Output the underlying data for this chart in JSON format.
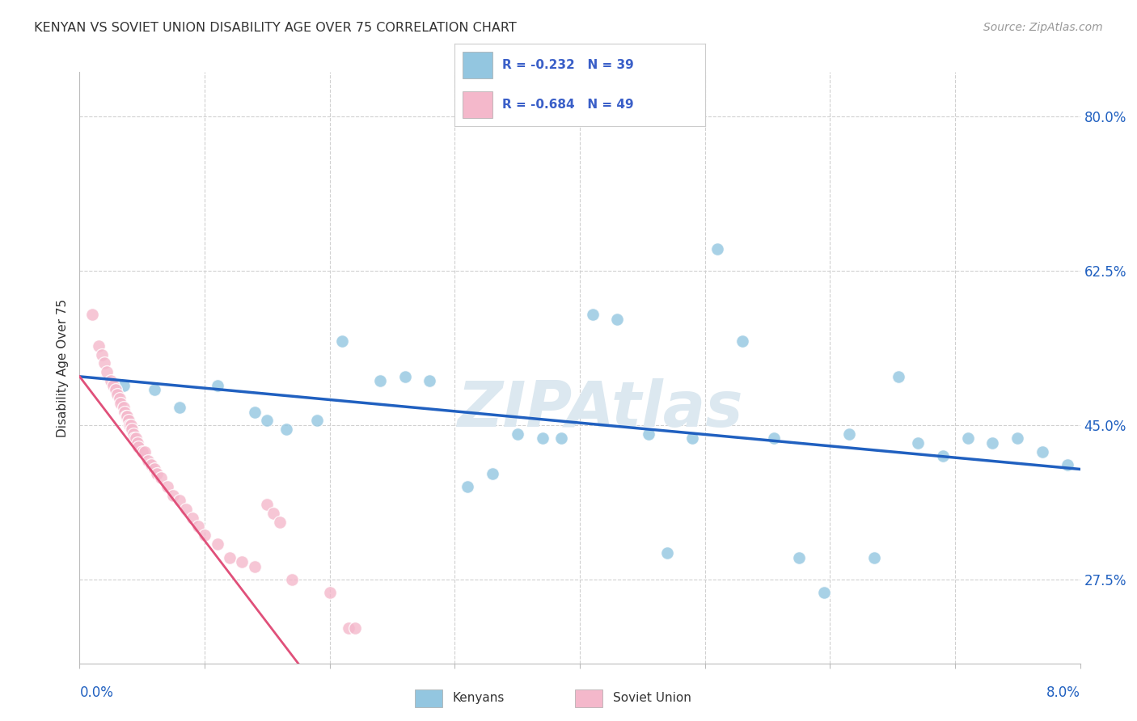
{
  "title": "KENYAN VS SOVIET UNION DISABILITY AGE OVER 75 CORRELATION CHART",
  "source": "Source: ZipAtlas.com",
  "ylabel": "Disability Age Over 75",
  "yticks": [
    27.5,
    45.0,
    62.5,
    80.0
  ],
  "ytick_labels": [
    "27.5%",
    "45.0%",
    "62.5%",
    "80.0%"
  ],
  "xtick_labels": [
    "0.0%",
    "",
    "",
    "",
    "",
    "",
    "",
    "",
    "8.0%"
  ],
  "xmin": 0.0,
  "xmax": 8.0,
  "ymin": 18.0,
  "ymax": 85.0,
  "kenyan_color": "#93c6e0",
  "soviet_color": "#f4b8cb",
  "kenyan_line_color": "#2060c0",
  "soviet_line_color": "#e0507a",
  "legend_text_color": "#3a5fc8",
  "title_color": "#333333",
  "source_color": "#999999",
  "watermark_color": "#dce8f0",
  "background_color": "#ffffff",
  "grid_color": "#d0d0d0",
  "axis_color": "#bbbbbb",
  "kenyan_scatter": [
    [
      0.35,
      49.5
    ],
    [
      0.6,
      49.0
    ],
    [
      0.8,
      47.0
    ],
    [
      1.1,
      49.5
    ],
    [
      1.4,
      46.5
    ],
    [
      1.5,
      45.5
    ],
    [
      1.65,
      44.5
    ],
    [
      1.9,
      45.5
    ],
    [
      2.1,
      54.5
    ],
    [
      2.4,
      50.0
    ],
    [
      2.6,
      50.5
    ],
    [
      2.8,
      50.0
    ],
    [
      3.1,
      38.0
    ],
    [
      3.3,
      39.5
    ],
    [
      3.5,
      44.0
    ],
    [
      3.7,
      43.5
    ],
    [
      3.85,
      43.5
    ],
    [
      4.1,
      57.5
    ],
    [
      4.3,
      57.0
    ],
    [
      4.55,
      44.0
    ],
    [
      4.7,
      30.5
    ],
    [
      4.9,
      43.5
    ],
    [
      5.1,
      65.0
    ],
    [
      5.3,
      54.5
    ],
    [
      5.55,
      43.5
    ],
    [
      5.75,
      30.0
    ],
    [
      5.95,
      26.0
    ],
    [
      6.15,
      44.0
    ],
    [
      6.35,
      30.0
    ],
    [
      6.55,
      50.5
    ],
    [
      6.7,
      43.0
    ],
    [
      6.9,
      41.5
    ],
    [
      7.1,
      43.5
    ],
    [
      7.3,
      43.0
    ],
    [
      7.5,
      43.5
    ],
    [
      7.7,
      42.0
    ],
    [
      7.9,
      40.5
    ]
  ],
  "soviet_scatter": [
    [
      0.1,
      57.5
    ],
    [
      0.15,
      54.0
    ],
    [
      0.18,
      53.0
    ],
    [
      0.2,
      52.0
    ],
    [
      0.22,
      51.0
    ],
    [
      0.25,
      50.0
    ],
    [
      0.27,
      49.5
    ],
    [
      0.29,
      49.0
    ],
    [
      0.3,
      48.5
    ],
    [
      0.32,
      48.0
    ],
    [
      0.33,
      47.5
    ],
    [
      0.35,
      47.0
    ],
    [
      0.36,
      46.5
    ],
    [
      0.37,
      46.0
    ],
    [
      0.38,
      46.0
    ],
    [
      0.39,
      45.5
    ],
    [
      0.4,
      45.0
    ],
    [
      0.41,
      45.0
    ],
    [
      0.42,
      44.5
    ],
    [
      0.43,
      44.0
    ],
    [
      0.44,
      43.5
    ],
    [
      0.45,
      43.5
    ],
    [
      0.46,
      43.0
    ],
    [
      0.47,
      42.5
    ],
    [
      0.5,
      42.0
    ],
    [
      0.52,
      42.0
    ],
    [
      0.55,
      41.0
    ],
    [
      0.57,
      40.5
    ],
    [
      0.6,
      40.0
    ],
    [
      0.62,
      39.5
    ],
    [
      0.65,
      39.0
    ],
    [
      0.7,
      38.0
    ],
    [
      0.75,
      37.0
    ],
    [
      0.8,
      36.5
    ],
    [
      0.85,
      35.5
    ],
    [
      0.9,
      34.5
    ],
    [
      0.95,
      33.5
    ],
    [
      1.0,
      32.5
    ],
    [
      1.1,
      31.5
    ],
    [
      1.2,
      30.0
    ],
    [
      1.3,
      29.5
    ],
    [
      1.4,
      29.0
    ],
    [
      1.5,
      36.0
    ],
    [
      1.55,
      35.0
    ],
    [
      1.6,
      34.0
    ],
    [
      1.7,
      27.5
    ],
    [
      2.0,
      26.0
    ],
    [
      2.15,
      22.0
    ],
    [
      2.2,
      22.0
    ]
  ],
  "kenyan_line": [
    0.0,
    8.0,
    50.5,
    40.0
  ],
  "soviet_line": [
    0.0,
    2.5,
    50.5,
    4.0
  ],
  "soviet_line_dash_end": 3.2
}
